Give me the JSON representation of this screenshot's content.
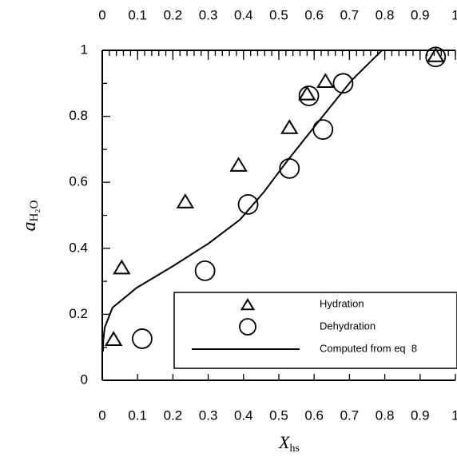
{
  "chart_data": {
    "type": "scatter",
    "x_label": "X",
    "x_label_sub": "hs",
    "y_label": "a",
    "y_label_sub": "H₂O",
    "xlim": [
      0,
      1
    ],
    "ylim": [
      0,
      1
    ],
    "xticks": [
      0,
      0.1,
      0.2,
      0.3,
      0.4,
      0.5,
      0.6,
      0.7,
      0.8,
      0.9,
      1
    ],
    "x2ticks": [
      0,
      0.1,
      0.2,
      0.3,
      0.4,
      0.5,
      0.6,
      0.7,
      0.8,
      0.9,
      1
    ],
    "x2_minor_step": 0.02,
    "yticks": [
      0,
      0.2,
      0.4,
      0.6,
      0.8,
      1
    ],
    "yminor": [
      0.1,
      0.3,
      0.5,
      0.7,
      0.9
    ],
    "grid": false,
    "legend": "lower right",
    "series": [
      {
        "name": "Hydration",
        "marker": "triangle",
        "color": "#000000",
        "x": [
          0.032,
          0.055,
          0.235,
          0.386,
          0.53,
          0.58,
          0.632,
          0.944
        ],
        "values": [
          0.123,
          0.34,
          0.54,
          0.651,
          0.765,
          0.867,
          0.905,
          0.983
        ]
      },
      {
        "name": "Dehydration",
        "marker": "circle",
        "color": "#000000",
        "x": [
          0.113,
          0.291,
          0.413,
          0.53,
          0.625,
          0.585,
          0.682,
          0.944
        ],
        "values": [
          0.126,
          0.332,
          0.533,
          0.642,
          0.76,
          0.862,
          0.9,
          0.98
        ]
      },
      {
        "name": "Computed from eq  8",
        "marker": "line",
        "color": "#000000",
        "x": [
          0.002,
          0.003,
          0.007,
          0.029,
          0.097,
          0.2,
          0.3,
          0.39,
          0.458,
          0.526,
          0.616,
          0.707,
          0.792
        ],
        "values": [
          0.087,
          0.123,
          0.16,
          0.22,
          0.28,
          0.346,
          0.414,
          0.487,
          0.571,
          0.668,
          0.789,
          0.91,
          1.0
        ]
      }
    ]
  }
}
